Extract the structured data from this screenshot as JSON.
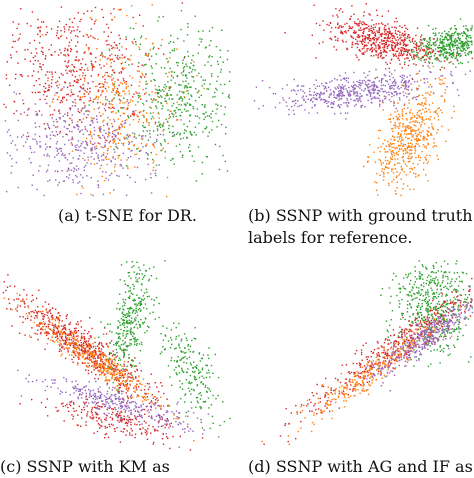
{
  "captions": {
    "a": "(a) t-SNE for DR.",
    "b_line1": "(b) SSNP with ground truth",
    "b_line2": "labels for reference.",
    "c": "(c)   SSNP   with   KM   as",
    "d": "(d) SSNP with AG and IF as"
  },
  "colors": {
    "red": "#d62728",
    "green": "#2ca02c",
    "orange": "#ff7f0e",
    "purple": "#9467bd"
  },
  "chart_data": [
    {
      "type": "scatter",
      "id": "a",
      "title": "",
      "series": [
        {
          "color": "red",
          "clusters": [
            {
              "cx": 0.32,
              "cy": 0.33,
              "sx": 0.17,
              "sy": 0.16,
              "n": 520
            }
          ]
        },
        {
          "color": "green",
          "clusters": [
            {
              "cx": 0.76,
              "cy": 0.48,
              "sx": 0.13,
              "sy": 0.18,
              "n": 480
            }
          ]
        },
        {
          "color": "orange",
          "clusters": [
            {
              "cx": 0.52,
              "cy": 0.52,
              "sx": 0.12,
              "sy": 0.2,
              "n": 360
            }
          ]
        },
        {
          "color": "purple",
          "clusters": [
            {
              "cx": 0.33,
              "cy": 0.72,
              "sx": 0.16,
              "sy": 0.12,
              "n": 420
            }
          ]
        }
      ]
    },
    {
      "type": "scatter",
      "id": "b",
      "title": "",
      "series": [
        {
          "color": "red",
          "clusters": [
            {
              "cx": 0.6,
              "cy": 0.2,
              "sx": 0.12,
              "sy": 0.05,
              "n": 600,
              "rot": 20
            }
          ]
        },
        {
          "color": "green",
          "clusters": [
            {
              "cx": 0.9,
              "cy": 0.22,
              "sx": 0.04,
              "sy": 0.08,
              "n": 420,
              "rot": 75
            }
          ]
        },
        {
          "color": "purple",
          "clusters": [
            {
              "cx": 0.5,
              "cy": 0.45,
              "sx": 0.18,
              "sy": 0.04,
              "n": 520,
              "rot": -8
            }
          ]
        },
        {
          "color": "orange",
          "clusters": [
            {
              "cx": 0.72,
              "cy": 0.68,
              "sx": 0.06,
              "sy": 0.13,
              "n": 500,
              "rot": 20
            }
          ]
        }
      ]
    },
    {
      "type": "scatter",
      "id": "c",
      "title": "",
      "series": [
        {
          "color": "red",
          "clusters": [
            {
              "cx": 0.35,
              "cy": 0.44,
              "sx": 0.2,
              "sy": 0.04,
              "n": 650,
              "rot": 40
            },
            {
              "cx": 0.5,
              "cy": 0.8,
              "sx": 0.14,
              "sy": 0.04,
              "n": 250,
              "rot": 15
            }
          ]
        },
        {
          "color": "green",
          "clusters": [
            {
              "cx": 0.56,
              "cy": 0.3,
              "sx": 0.04,
              "sy": 0.15,
              "n": 350,
              "rot": 10
            },
            {
              "cx": 0.82,
              "cy": 0.55,
              "sx": 0.05,
              "sy": 0.12,
              "n": 200,
              "rot": -20
            }
          ]
        },
        {
          "color": "orange",
          "clusters": [
            {
              "cx": 0.4,
              "cy": 0.5,
              "sx": 0.18,
              "sy": 0.03,
              "n": 380,
              "rot": 40
            }
          ]
        },
        {
          "color": "purple",
          "clusters": [
            {
              "cx": 0.5,
              "cy": 0.72,
              "sx": 0.17,
              "sy": 0.03,
              "n": 300,
              "rot": 18
            }
          ]
        }
      ]
    },
    {
      "type": "scatter",
      "id": "d",
      "title": "",
      "series": [
        {
          "color": "green",
          "clusters": [
            {
              "cx": 0.82,
              "cy": 0.23,
              "sx": 0.08,
              "sy": 0.12,
              "n": 520
            }
          ]
        },
        {
          "color": "red",
          "clusters": [
            {
              "cx": 0.65,
              "cy": 0.45,
              "sx": 0.25,
              "sy": 0.04,
              "n": 480,
              "rot": -40
            }
          ]
        },
        {
          "color": "orange",
          "clusters": [
            {
              "cx": 0.58,
              "cy": 0.55,
              "sx": 0.22,
              "sy": 0.03,
              "n": 300,
              "rot": -40
            }
          ]
        },
        {
          "color": "purple",
          "clusters": [
            {
              "cx": 0.78,
              "cy": 0.4,
              "sx": 0.14,
              "sy": 0.03,
              "n": 350,
              "rot": -40
            }
          ]
        }
      ]
    }
  ]
}
